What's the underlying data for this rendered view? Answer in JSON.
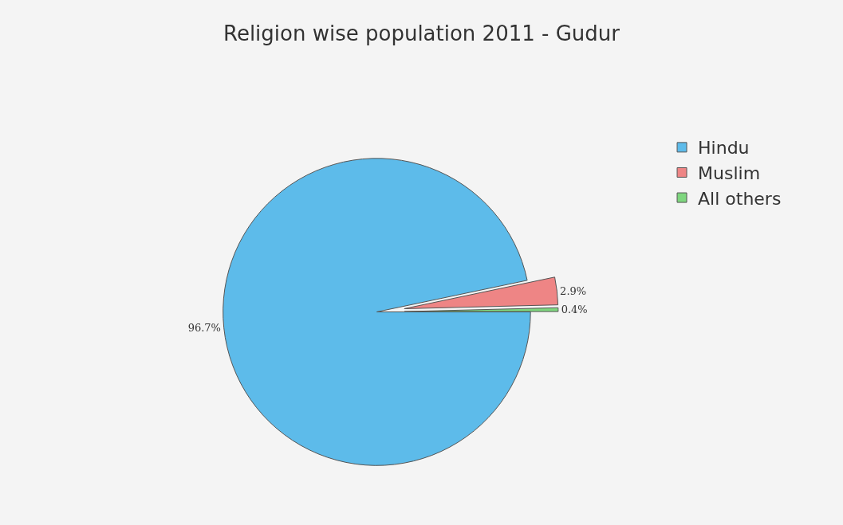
{
  "chart_data": {
    "type": "pie",
    "title": "Religion wise population 2011 - Gudur",
    "categories": [
      "Hindu",
      "Muslim",
      "All others"
    ],
    "values": [
      96.7,
      2.9,
      0.4
    ],
    "colors": [
      "#5dbbea",
      "#ee8585",
      "#7ed67e"
    ],
    "value_labels": [
      "96.7%",
      "2.9%",
      "0.4%"
    ],
    "legend": "top right"
  }
}
